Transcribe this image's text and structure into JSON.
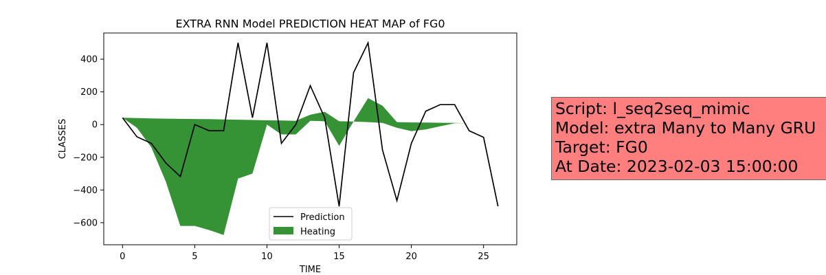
{
  "chart_data": {
    "type": "line",
    "title": "EXTRA RNN Model PREDICTION HEAT MAP of FG0",
    "xlabel": "TIME",
    "ylabel": "CLASSES",
    "xlim": [
      -1.3,
      27.3
    ],
    "ylim": [
      -735,
      560
    ],
    "xticks": [
      0,
      5,
      10,
      15,
      20,
      25
    ],
    "yticks": [
      -600,
      -400,
      -200,
      0,
      200,
      400
    ],
    "grid": false,
    "legend_position": "lower center",
    "series": [
      {
        "name": "Prediction",
        "kind": "line",
        "color": "#000000",
        "x": [
          0,
          1,
          2,
          3,
          4,
          5,
          6,
          7,
          8,
          9,
          10,
          11,
          12,
          13,
          14,
          15,
          16,
          17,
          18,
          19,
          20,
          21,
          22,
          23,
          24,
          25,
          26
        ],
        "values": [
          42,
          -75,
          -115,
          -235,
          -318,
          0,
          -38,
          -38,
          500,
          42,
          500,
          -115,
          0,
          238,
          42,
          -500,
          318,
          500,
          -155,
          -465,
          -115,
          82,
          122,
          122,
          -38,
          -78,
          -500
        ]
      },
      {
        "name": "Heating",
        "kind": "area",
        "color": "#2a8c2a",
        "x": [
          0,
          1,
          2,
          3,
          4,
          5,
          6,
          7,
          8,
          9,
          10,
          11,
          12,
          13,
          14,
          15,
          16,
          17,
          18,
          19,
          20,
          21,
          22,
          23,
          24,
          25,
          26
        ],
        "upper": [
          42,
          40,
          38,
          36,
          35,
          34,
          33,
          31,
          30,
          28,
          26,
          25,
          23,
          60,
          78,
          20,
          19,
          162,
          115,
          15,
          13,
          12,
          11,
          10,
          8,
          6,
          5
        ],
        "lower": [
          42,
          -20,
          -140,
          -350,
          -620,
          -620,
          -645,
          -675,
          -330,
          -300,
          0,
          -60,
          -60,
          23,
          20,
          -130,
          19,
          15,
          10,
          -20,
          -40,
          -30,
          -10,
          8,
          8,
          6,
          5
        ]
      }
    ]
  },
  "info": {
    "lines": [
      "Script: l_seq2seq_mimic",
      "Model: extra Many to Many GRU",
      "Target: FG0",
      "At Date: 2023-02-03 15:00:00"
    ]
  }
}
